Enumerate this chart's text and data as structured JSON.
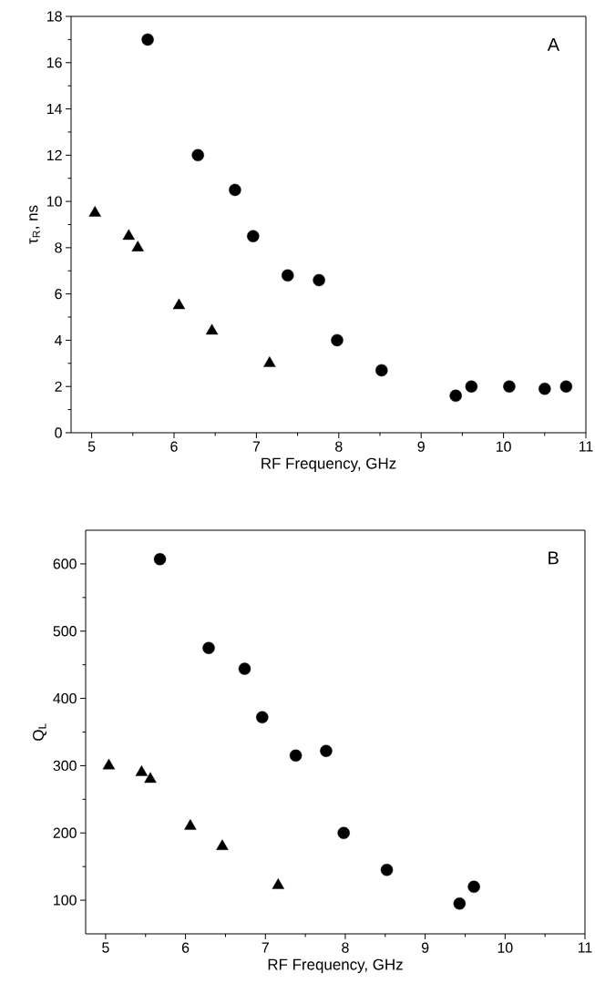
{
  "chart_data": [
    {
      "type": "scatter",
      "xlabel": "RF Frequency, GHz",
      "ylabel": "τ$_{R}$, ns",
      "annotations": [
        "A"
      ],
      "xlim": [
        4.75,
        11
      ],
      "xticks": [
        5,
        6,
        7,
        8,
        9,
        10,
        11
      ],
      "ylim": [
        0,
        18
      ],
      "yticks": [
        0,
        2,
        4,
        6,
        8,
        10,
        12,
        14,
        16,
        18
      ],
      "series": [
        {
          "marker": "circle",
          "color": "#000000",
          "x": [
            5.68,
            6.29,
            6.74,
            6.96,
            7.38,
            7.76,
            7.98,
            8.52,
            9.42,
            9.61,
            10.07,
            10.5,
            10.76
          ],
          "values": [
            17,
            12,
            10.5,
            8.5,
            6.8,
            6.6,
            4,
            2.7,
            1.6,
            2,
            2,
            1.9,
            2
          ]
        },
        {
          "marker": "triangle",
          "color": "#000000",
          "x": [
            5.04,
            5.45,
            5.56,
            6.06,
            6.46,
            7.16
          ],
          "values": [
            9.5,
            8.5,
            8,
            5.5,
            4.4,
            3
          ]
        }
      ]
    },
    {
      "type": "scatter",
      "xlabel": "RF Frequency, GHz",
      "ylabel": "Q$_{L}$",
      "annotations": [
        "B"
      ],
      "xlim": [
        4.75,
        11
      ],
      "xticks": [
        5,
        6,
        7,
        8,
        9,
        10,
        11
      ],
      "ylim": [
        50,
        650
      ],
      "yticks": [
        100,
        200,
        300,
        400,
        500,
        600
      ],
      "series": [
        {
          "marker": "circle",
          "color": "#000000",
          "x": [
            5.68,
            6.29,
            6.74,
            6.96,
            7.38,
            7.76,
            7.98,
            8.52,
            9.43,
            9.61
          ],
          "values": [
            607,
            475,
            444,
            372,
            315,
            322,
            200,
            145,
            95,
            120
          ]
        },
        {
          "marker": "triangle",
          "color": "#000000",
          "x": [
            5.04,
            5.45,
            5.56,
            6.06,
            6.46,
            7.16
          ],
          "values": [
            300,
            290,
            280,
            210,
            180,
            122
          ]
        }
      ]
    }
  ]
}
